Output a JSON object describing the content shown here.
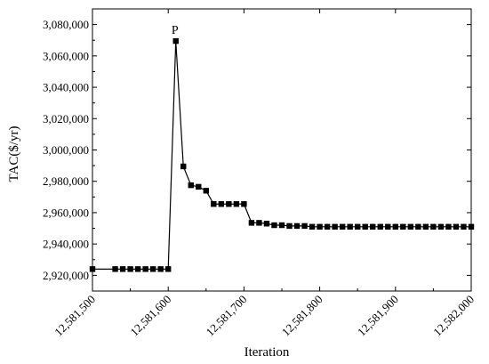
{
  "chart_data": {
    "type": "line",
    "title": "",
    "xlabel": "Iteration",
    "ylabel": "TAC($/yr)",
    "xlim": [
      12581500,
      12582000
    ],
    "ylim": [
      2910000,
      3090000
    ],
    "x_ticks": [
      12581500,
      12581600,
      12581700,
      12581800,
      12581900,
      12582000
    ],
    "x_tick_labels": [
      "12,581,500",
      "12,581,600",
      "12,581,700",
      "12,581,800",
      "12,581,900",
      "12,582,000"
    ],
    "y_ticks": [
      2920000,
      2940000,
      2960000,
      2980000,
      3000000,
      3020000,
      3040000,
      3060000,
      3080000
    ],
    "y_tick_labels": [
      "2,920,000",
      "2,940,000",
      "2,960,000",
      "2,980,000",
      "3,000,000",
      "3,020,000",
      "3,040,000",
      "3,060,000",
      "3,080,000"
    ],
    "grid": false,
    "legend": "none",
    "marker": "square",
    "color": "#000000",
    "annotations": [
      {
        "text": "P",
        "x": 12581610,
        "y": 3069500
      }
    ],
    "series": [
      {
        "points": [
          [
            12581500,
            2924000
          ],
          [
            12581530,
            2924000
          ],
          [
            12581540,
            2924000
          ],
          [
            12581550,
            2924000
          ],
          [
            12581560,
            2924000
          ],
          [
            12581570,
            2924000
          ],
          [
            12581580,
            2924000
          ],
          [
            12581590,
            2924000
          ],
          [
            12581600,
            2924000
          ],
          [
            12581610,
            3069500
          ],
          [
            12581620,
            2989500
          ],
          [
            12581630,
            2977500
          ],
          [
            12581640,
            2976500
          ],
          [
            12581650,
            2974000
          ],
          [
            12581660,
            2965500
          ],
          [
            12581670,
            2965500
          ],
          [
            12581680,
            2965500
          ],
          [
            12581690,
            2965500
          ],
          [
            12581700,
            2965500
          ],
          [
            12581710,
            2953500
          ],
          [
            12581720,
            2953500
          ],
          [
            12581730,
            2953000
          ],
          [
            12581740,
            2952000
          ],
          [
            12581750,
            2952000
          ],
          [
            12581760,
            2951500
          ],
          [
            12581770,
            2951500
          ],
          [
            12581780,
            2951500
          ],
          [
            12581790,
            2951000
          ],
          [
            12581800,
            2951000
          ],
          [
            12581810,
            2951000
          ],
          [
            12581820,
            2951000
          ],
          [
            12581830,
            2951000
          ],
          [
            12581840,
            2951000
          ],
          [
            12581850,
            2951000
          ],
          [
            12581860,
            2951000
          ],
          [
            12581870,
            2951000
          ],
          [
            12581880,
            2951000
          ],
          [
            12581890,
            2951000
          ],
          [
            12581900,
            2951000
          ],
          [
            12581910,
            2951000
          ],
          [
            12581920,
            2951000
          ],
          [
            12581930,
            2951000
          ],
          [
            12581940,
            2951000
          ],
          [
            12581950,
            2951000
          ],
          [
            12581960,
            2951000
          ],
          [
            12581970,
            2951000
          ],
          [
            12581980,
            2951000
          ],
          [
            12581990,
            2951000
          ],
          [
            12582000,
            2951000
          ]
        ]
      }
    ]
  }
}
